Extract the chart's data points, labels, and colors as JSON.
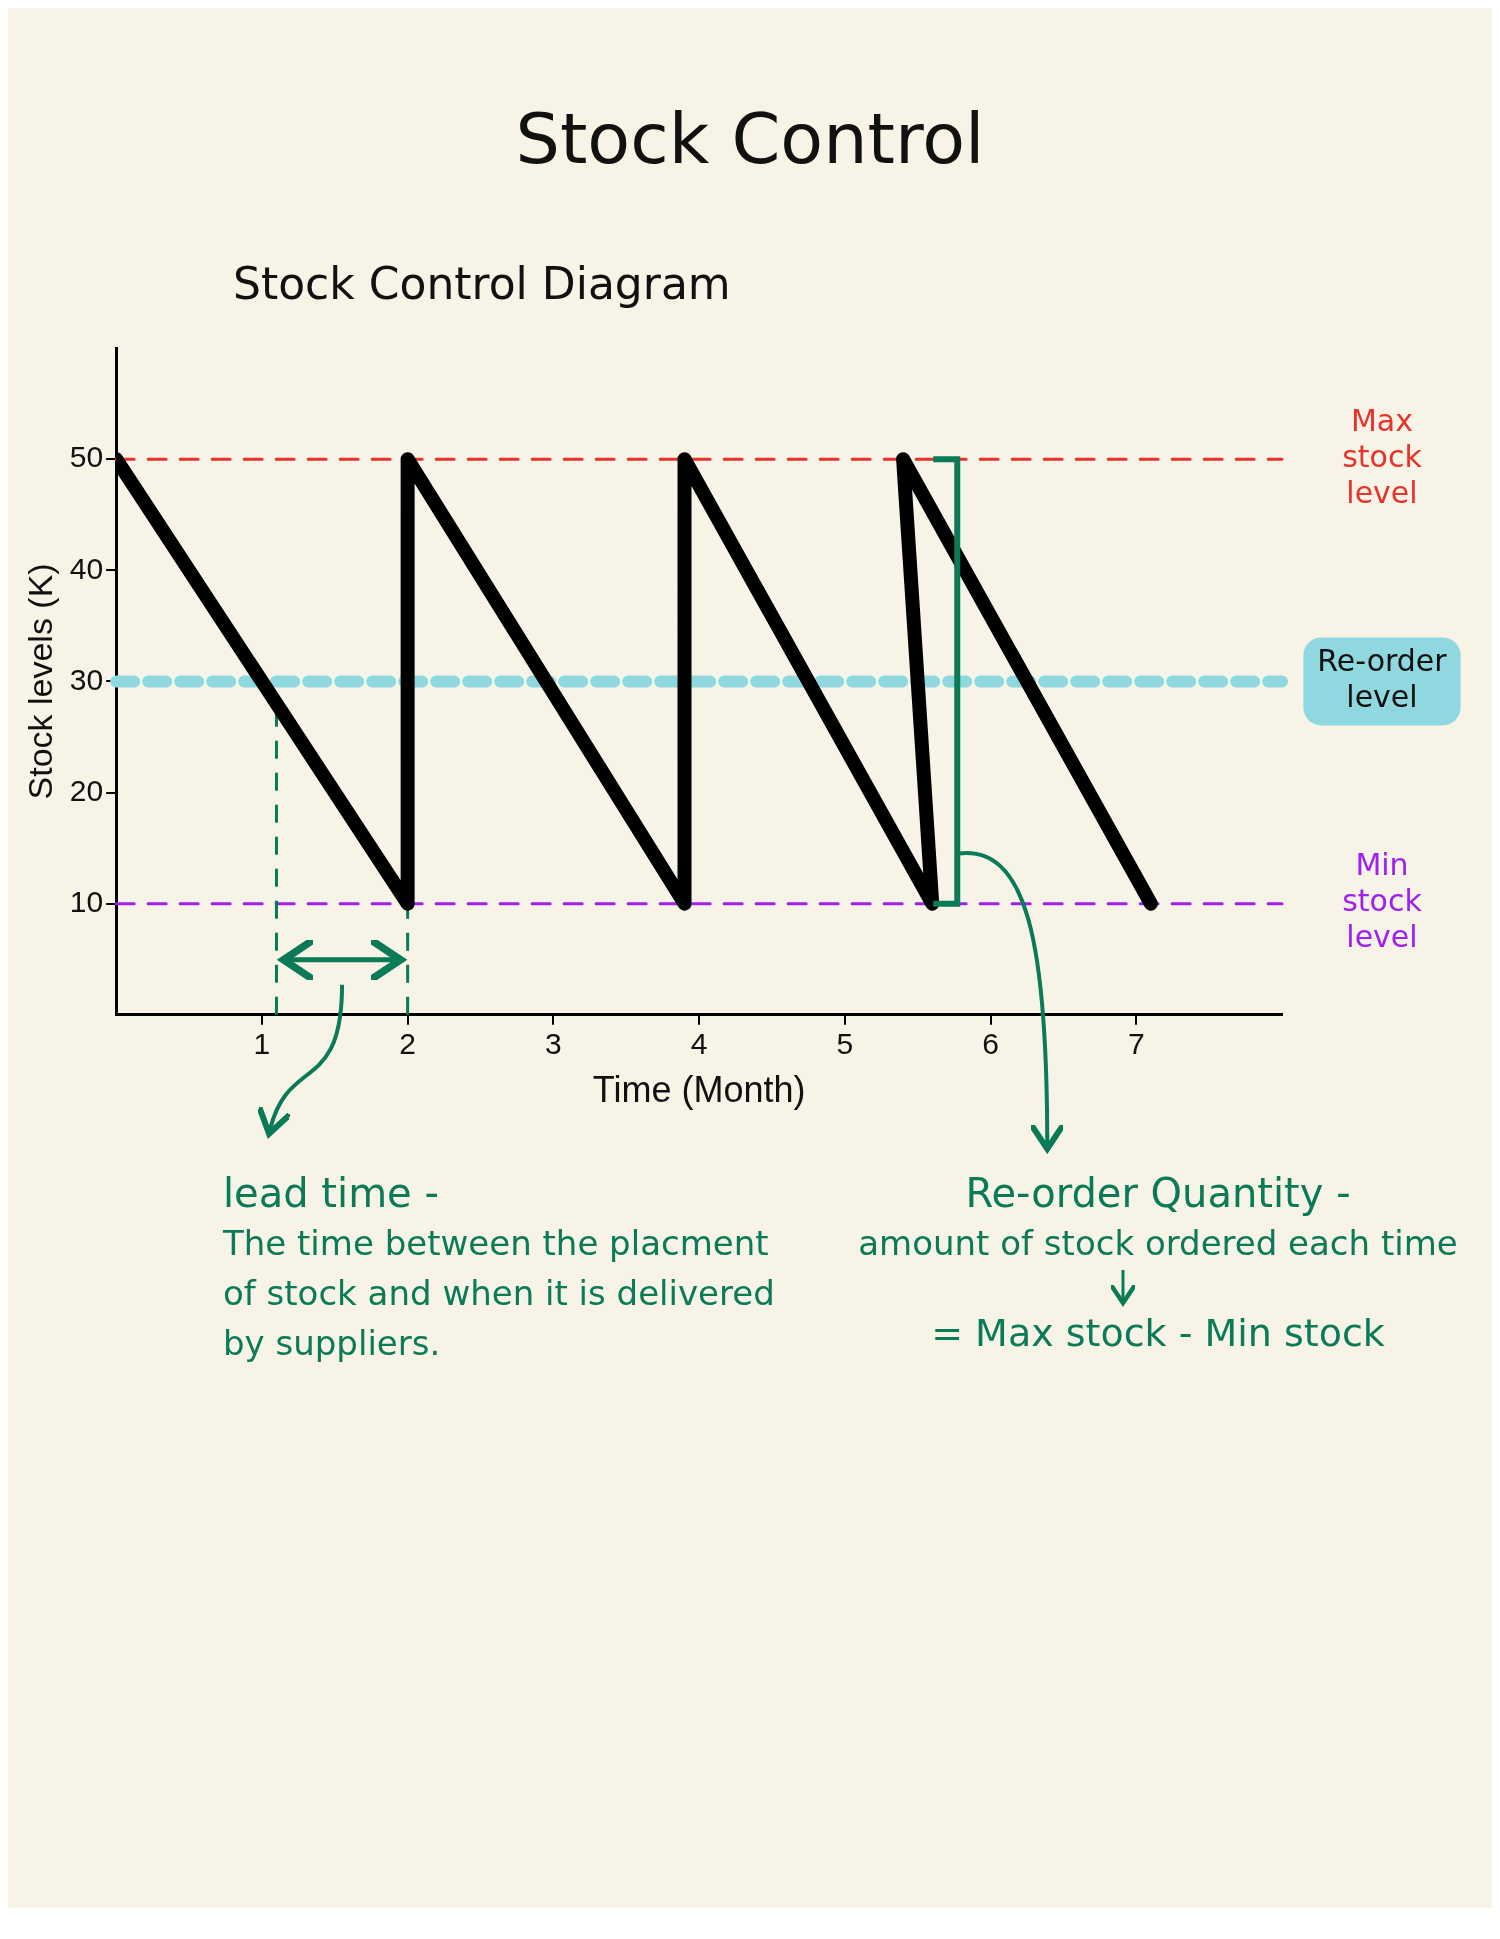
{
  "chart_data": {
    "type": "line",
    "title": "Stock Control",
    "subtitle": "Stock Control Diagram",
    "xlabel": "Time (Month)",
    "ylabel": "Stock levels (K)",
    "x": [
      0,
      2,
      2,
      3.9,
      3.9,
      5.6,
      5.4,
      7.1
    ],
    "series": [
      {
        "color": "#000000",
        "values": [
          50,
          10,
          50,
          10,
          50,
          10,
          50,
          10
        ]
      }
    ],
    "xlim": [
      0,
      8
    ],
    "xticks": [
      1,
      2,
      3,
      4,
      5,
      6,
      7
    ],
    "ylim": [
      0,
      60
    ],
    "yticks": [
      10,
      20,
      30,
      40,
      50
    ],
    "ref_lines": [
      {
        "axis": "y",
        "value": 50,
        "label": "Max stock level",
        "color": "#e8322c",
        "line_style": "dashed"
      },
      {
        "axis": "y",
        "value": 30,
        "label": "Re-order level",
        "color": "#8fd8e0",
        "line_style": "dashed"
      },
      {
        "axis": "y",
        "value": 10,
        "label": "Min stock level",
        "color": "#a020f0",
        "line_style": "dashed"
      },
      {
        "axis": "x",
        "value": 1.1,
        "color": "#0b7a57",
        "line_style": "dashed"
      },
      {
        "axis": "x",
        "value": 2,
        "color": "#0b7a57",
        "line_style": "dashed"
      }
    ],
    "annotations": [
      "lead time -",
      "The time between the placment of stock and when it is delivered by suppliers.",
      "Re-order Quantity -",
      "amount of stock ordered each time",
      "= Max stock - Min stock"
    ],
    "grid": false,
    "legend": false,
    "marker": "none",
    "line_style": "solid"
  }
}
